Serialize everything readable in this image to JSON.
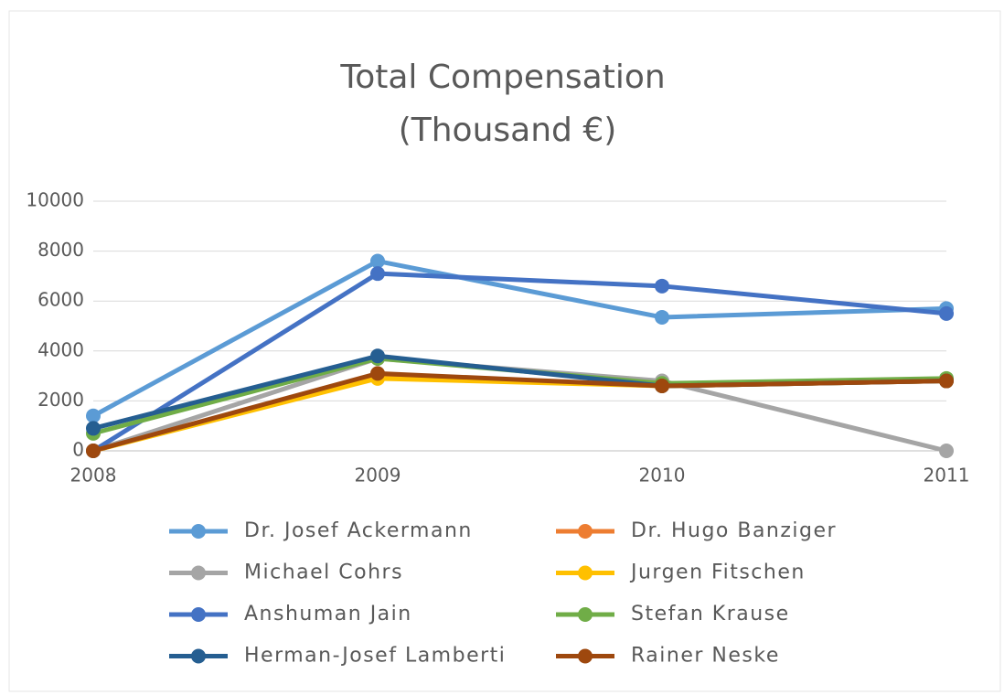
{
  "chart_data": {
    "type": "line",
    "title": [
      "Total Compensation",
      "(Thousand €)"
    ],
    "categories": [
      "2008",
      "2009",
      "2010",
      "2011"
    ],
    "ylim": [
      0,
      10000
    ],
    "yticks": [
      0,
      2000,
      4000,
      6000,
      8000,
      10000
    ],
    "grid": true,
    "series": [
      {
        "name": "Dr. Josef Ackermann",
        "color": "#5b9bd5",
        "values": [
          1400,
          7600,
          5350,
          5700
        ]
      },
      {
        "name": "Dr. Hugo Banziger",
        "color": "#ed7d31",
        "values": [
          0,
          3000,
          2600,
          2800
        ]
      },
      {
        "name": "Michael Cohrs",
        "color": "#a5a5a5",
        "values": [
          0,
          3700,
          2800,
          0
        ]
      },
      {
        "name": "Jurgen Fitschen",
        "color": "#ffc000",
        "values": [
          0,
          2900,
          2600,
          2800
        ]
      },
      {
        "name": "Anshuman Jain",
        "color": "#4472c4",
        "values": [
          0,
          7100,
          6600,
          5500
        ]
      },
      {
        "name": "Stefan Krause",
        "color": "#70ad47",
        "values": [
          700,
          3700,
          2700,
          2900
        ]
      },
      {
        "name": "Herman-Josef Lamberti",
        "color": "#255e91",
        "values": [
          900,
          3800,
          2600,
          2800
        ]
      },
      {
        "name": "Rainer Neske",
        "color": "#9e480e",
        "values": [
          0,
          3100,
          2600,
          2800
        ]
      }
    ]
  }
}
